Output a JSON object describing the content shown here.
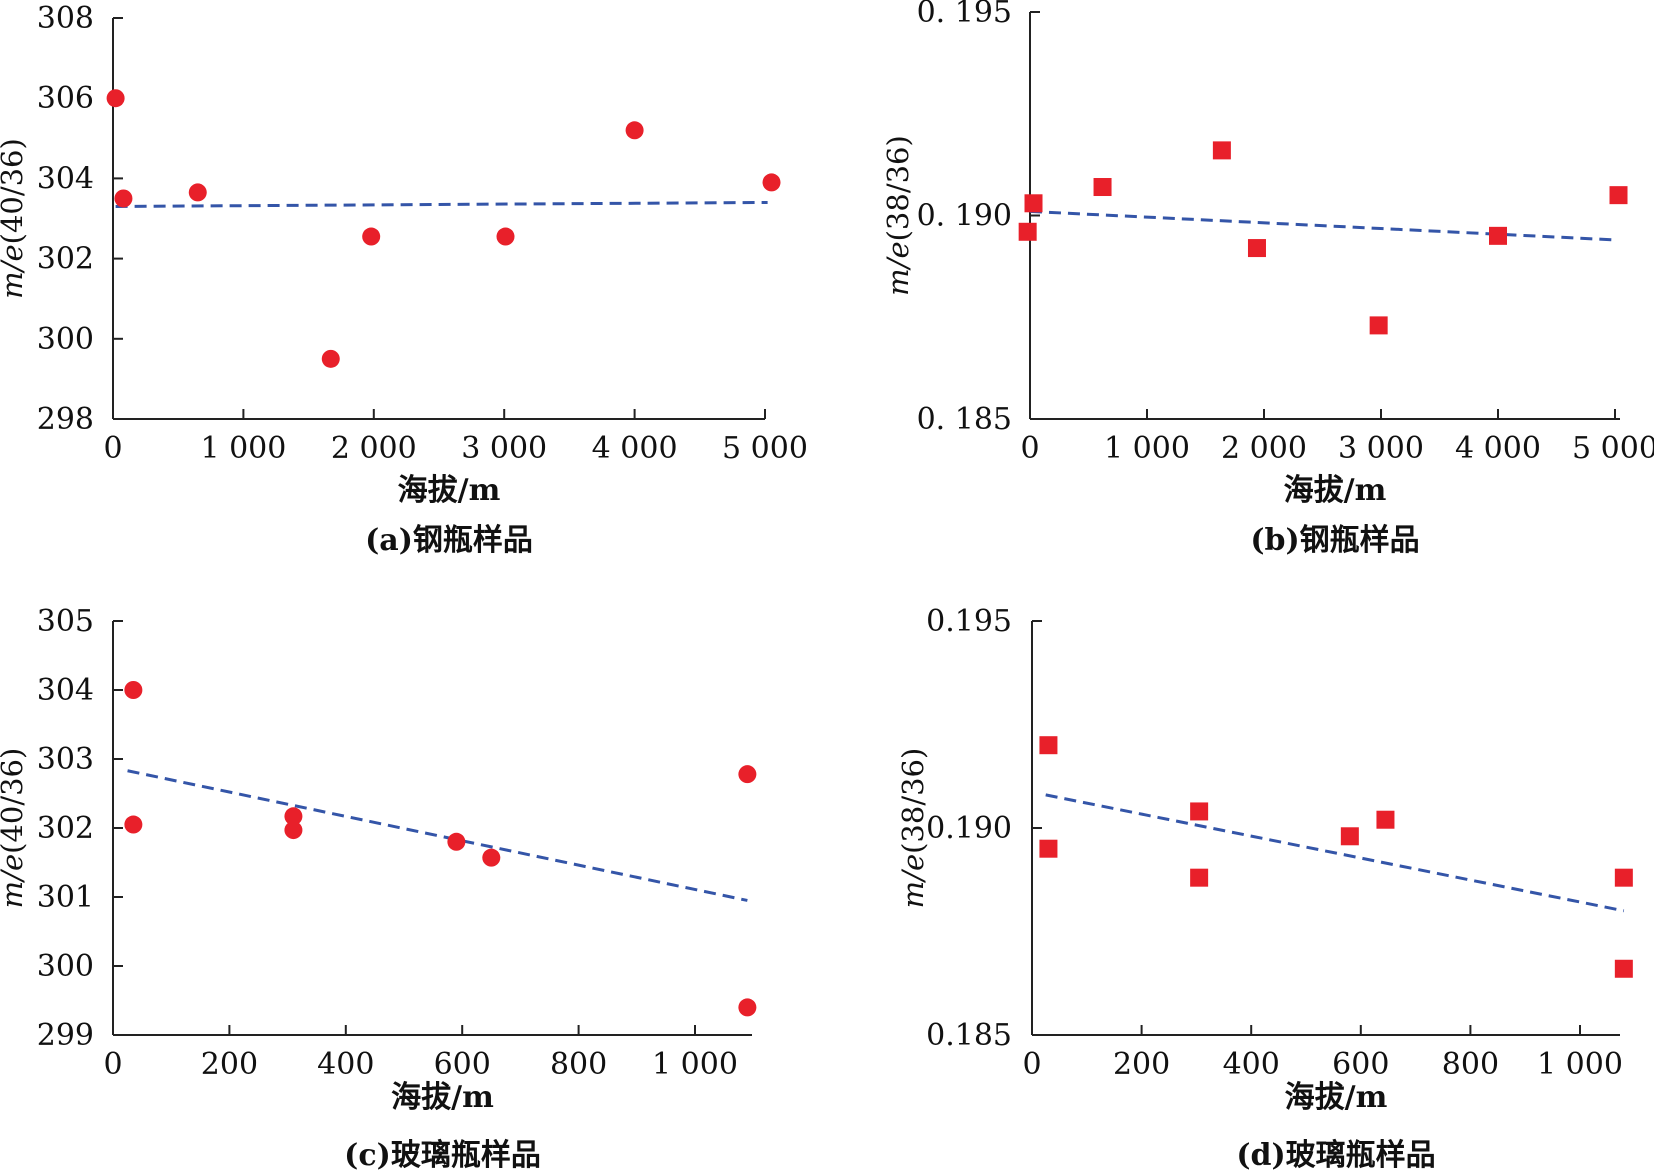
{
  "colors": {
    "marker": "#e8202a",
    "trend": "#3455a8",
    "axis": "#222222"
  },
  "chart_data": [
    {
      "type": "scatter",
      "caption": "(a)钢瓶样品",
      "xlabel": "海拔/m",
      "ylabel": "m/e(40/36)",
      "ylabel_italic": "m/e",
      "ylabel_rest": "(40/36)",
      "marker": "circle",
      "xlim": [
        0,
        5000
      ],
      "ylim": [
        298,
        308
      ],
      "xticks": [
        0,
        1000,
        2000,
        3000,
        4000,
        5000
      ],
      "xtick_labels": [
        "0",
        "1 000",
        "2 000",
        "3 000",
        "4 000",
        "5 000"
      ],
      "yticks": [
        298,
        300,
        302,
        304,
        306,
        308
      ],
      "ytick_labels": [
        "298",
        "300",
        "302",
        "304",
        "306",
        "308"
      ],
      "points": [
        {
          "x": 20,
          "y": 306.0
        },
        {
          "x": 80,
          "y": 303.5
        },
        {
          "x": 650,
          "y": 303.65
        },
        {
          "x": 1670,
          "y": 299.5
        },
        {
          "x": 1980,
          "y": 302.55
        },
        {
          "x": 3010,
          "y": 302.55
        },
        {
          "x": 4000,
          "y": 305.2
        },
        {
          "x": 5050,
          "y": 303.9
        }
      ],
      "trendline": {
        "x": [
          20,
          5020
        ],
        "y": [
          303.3,
          303.4
        ]
      },
      "grid": false,
      "legend": "none"
    },
    {
      "type": "scatter",
      "caption": "(b)钢瓶样品",
      "xlabel": "海拔/m",
      "ylabel": "m/e(38/36)",
      "ylabel_italic": "m/e",
      "ylabel_rest": "(38/36)",
      "marker": "square",
      "xlim": [
        0,
        5000
      ],
      "ylim": [
        0.185,
        0.195
      ],
      "xticks": [
        0,
        1000,
        2000,
        3000,
        4000,
        5000
      ],
      "xtick_labels": [
        "0",
        "1 000",
        "2 000",
        "3 000",
        "4 000",
        "5 000"
      ],
      "yticks": [
        0.185,
        0.19,
        0.195
      ],
      "ytick_labels": [
        "0. 185",
        "0. 190",
        "0. 195"
      ],
      "points": [
        {
          "x": -20,
          "y": 0.1896
        },
        {
          "x": 30,
          "y": 0.1903
        },
        {
          "x": 620,
          "y": 0.1907
        },
        {
          "x": 1640,
          "y": 0.1916
        },
        {
          "x": 1940,
          "y": 0.1892
        },
        {
          "x": 2980,
          "y": 0.1873
        },
        {
          "x": 4000,
          "y": 0.1895
        },
        {
          "x": 5030,
          "y": 0.1905
        }
      ],
      "trendline": {
        "x": [
          0,
          5000
        ],
        "y": [
          0.1901,
          0.1894
        ]
      },
      "grid": false,
      "legend": "none"
    },
    {
      "type": "scatter",
      "caption": "(c)玻璃瓶样品",
      "xlabel": "海拔/m",
      "ylabel": "m/e(40/36)",
      "ylabel_italic": "m/e",
      "ylabel_rest": "(40/36)",
      "marker": "circle",
      "xlim": [
        0,
        1100
      ],
      "ylim": [
        299,
        305
      ],
      "xticks": [
        0,
        200,
        400,
        600,
        800,
        1000
      ],
      "xtick_labels": [
        "0",
        "200",
        "400",
        "600",
        "800",
        "1 000"
      ],
      "yticks": [
        299,
        300,
        301,
        302,
        303,
        304,
        305
      ],
      "ytick_labels": [
        "299",
        "300",
        "301",
        "302",
        "303",
        "304",
        "305"
      ],
      "points": [
        {
          "x": 35,
          "y": 304.0
        },
        {
          "x": 35,
          "y": 302.05
        },
        {
          "x": 310,
          "y": 302.17
        },
        {
          "x": 310,
          "y": 301.97
        },
        {
          "x": 590,
          "y": 301.8
        },
        {
          "x": 650,
          "y": 301.57
        },
        {
          "x": 1090,
          "y": 302.78
        },
        {
          "x": 1090,
          "y": 299.4
        }
      ],
      "trendline": {
        "x": [
          25,
          1090
        ],
        "y": [
          302.83,
          300.95
        ]
      },
      "grid": false,
      "legend": "none"
    },
    {
      "type": "scatter",
      "caption": "(d)玻璃瓶样品",
      "xlabel": "海拔/m",
      "ylabel": "m/e(38/36)",
      "ylabel_italic": "m/e",
      "ylabel_rest": "(38/36)",
      "marker": "square",
      "xlim": [
        0,
        1100
      ],
      "ylim": [
        0.185,
        0.195
      ],
      "xticks": [
        0,
        200,
        400,
        600,
        800,
        1000
      ],
      "xtick_labels": [
        "0",
        "200",
        "400",
        "600",
        "800",
        "1 000"
      ],
      "yticks": [
        0.185,
        0.19,
        0.195
      ],
      "ytick_labels": [
        "0.185",
        "0.190",
        "0.195"
      ],
      "points": [
        {
          "x": 30,
          "y": 0.192
        },
        {
          "x": 30,
          "y": 0.1895
        },
        {
          "x": 305,
          "y": 0.1904
        },
        {
          "x": 305,
          "y": 0.1888
        },
        {
          "x": 580,
          "y": 0.1898
        },
        {
          "x": 645,
          "y": 0.1902
        },
        {
          "x": 1080,
          "y": 0.1888
        },
        {
          "x": 1080,
          "y": 0.1866
        }
      ],
      "trendline": {
        "x": [
          25,
          1080
        ],
        "y": [
          0.1908,
          0.188
        ]
      },
      "grid": false,
      "legend": "none"
    }
  ]
}
